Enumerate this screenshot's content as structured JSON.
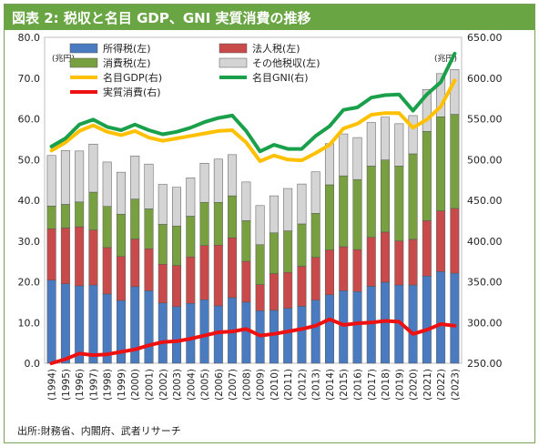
{
  "title": "図表 2: 税収と名目 GDP、GNI 実質消費の推移",
  "source": "出所:財務省、内閣府、武者リサーチ",
  "chart_data": {
    "type": "bar",
    "categories": [
      "(1994)",
      "(1995)",
      "(1996)",
      "(1997)",
      "(1998)",
      "(1999)",
      "(2000)",
      "(2001)",
      "(2002)",
      "(2003)",
      "(2004)",
      "(2005)",
      "(2006)",
      "(2007)",
      "(2008)",
      "(2009)",
      "(2010)",
      "(2011)",
      "(2012)",
      "(2013)",
      "(2014)",
      "(2015)",
      "(2016)",
      "(2017)",
      "(2018)",
      "(2019)",
      "(2020)",
      "(2021)",
      "(2022)",
      "(2023)"
    ],
    "left_axis": {
      "unit": "(兆円)",
      "ylim": [
        0,
        80
      ],
      "ticks": [
        "0.0",
        "10.0",
        "20.0",
        "30.0",
        "40.0",
        "50.0",
        "60.0",
        "70.0",
        "80.0"
      ]
    },
    "right_axis": {
      "unit": "(兆円)",
      "ylim": [
        250,
        650
      ],
      "ticks": [
        "250.00",
        "300.00",
        "350.00",
        "400.00",
        "450.00",
        "500.00",
        "550.00",
        "600.00",
        "650.00"
      ]
    },
    "bar_series": [
      {
        "name": "所得税(左)",
        "color": "#4a7bc0",
        "values": [
          20.4,
          19.5,
          19.0,
          19.2,
          17.0,
          15.4,
          18.8,
          17.8,
          14.8,
          13.9,
          14.7,
          15.6,
          14.1,
          16.1,
          15.0,
          12.9,
          13.0,
          13.5,
          14.0,
          15.5,
          16.8,
          17.8,
          17.6,
          18.9,
          19.9,
          19.2,
          19.2,
          21.4,
          22.5,
          22.1
        ]
      },
      {
        "name": "法人税(左)",
        "color": "#c94a4a",
        "values": [
          12.6,
          13.7,
          14.5,
          13.5,
          11.4,
          10.8,
          11.7,
          10.3,
          9.5,
          10.1,
          11.4,
          13.3,
          14.9,
          14.7,
          10.0,
          6.4,
          9.0,
          8.8,
          9.8,
          10.5,
          11.0,
          10.8,
          10.3,
          12.0,
          12.3,
          10.8,
          11.2,
          13.6,
          14.9,
          15.9
        ]
      },
      {
        "name": "消費税(左)",
        "color": "#78a040",
        "values": [
          5.6,
          5.8,
          6.1,
          9.3,
          10.1,
          10.4,
          9.8,
          9.8,
          9.8,
          9.7,
          10.0,
          10.6,
          10.5,
          10.3,
          10.0,
          9.8,
          10.0,
          10.2,
          10.4,
          10.8,
          16.0,
          17.4,
          17.2,
          17.5,
          17.7,
          18.4,
          21.0,
          21.9,
          23.1,
          23.1
        ]
      },
      {
        "name": "その他税収(左)",
        "color": "#d4d4d4",
        "values": [
          12.4,
          13.2,
          12.5,
          11.8,
          10.9,
          10.3,
          10.6,
          11.0,
          9.8,
          9.5,
          9.4,
          9.6,
          10.6,
          10.1,
          9.5,
          9.6,
          9.1,
          10.4,
          9.8,
          10.2,
          10.1,
          10.3,
          10.3,
          10.7,
          10.5,
          10.4,
          9.4,
          10.3,
          10.6,
          11.0
        ]
      }
    ],
    "line_series": [
      {
        "name": "名目GDP(右)",
        "color": "#ffc000",
        "axis": "right",
        "values": [
          511,
          521,
          535,
          542,
          534,
          530,
          535,
          527,
          523,
          526,
          529,
          532,
          535,
          536,
          521,
          498,
          505,
          500,
          499,
          508,
          518,
          538,
          544,
          555,
          557,
          557,
          539,
          549,
          565,
          597
        ]
      },
      {
        "name": "名目GNI(右)",
        "color": "#1aa04a",
        "axis": "right",
        "values": [
          516,
          526,
          543,
          549,
          540,
          536,
          543,
          536,
          531,
          534,
          539,
          546,
          551,
          554,
          535,
          510,
          518,
          513,
          513,
          529,
          541,
          561,
          564,
          576,
          579,
          580,
          560,
          580,
          595,
          630
        ]
      },
      {
        "name": "実質消費(右)",
        "color": "#ee1111",
        "axis": "right",
        "values": [
          250,
          255,
          262,
          260,
          261,
          264,
          267,
          272,
          276,
          277,
          280,
          284,
          288,
          289,
          292,
          284,
          286,
          289,
          292,
          296,
          304,
          297,
          299,
          300,
          302,
          301,
          286,
          291,
          298,
          296
        ]
      }
    ],
    "legend_placement": "top",
    "grid": false
  }
}
